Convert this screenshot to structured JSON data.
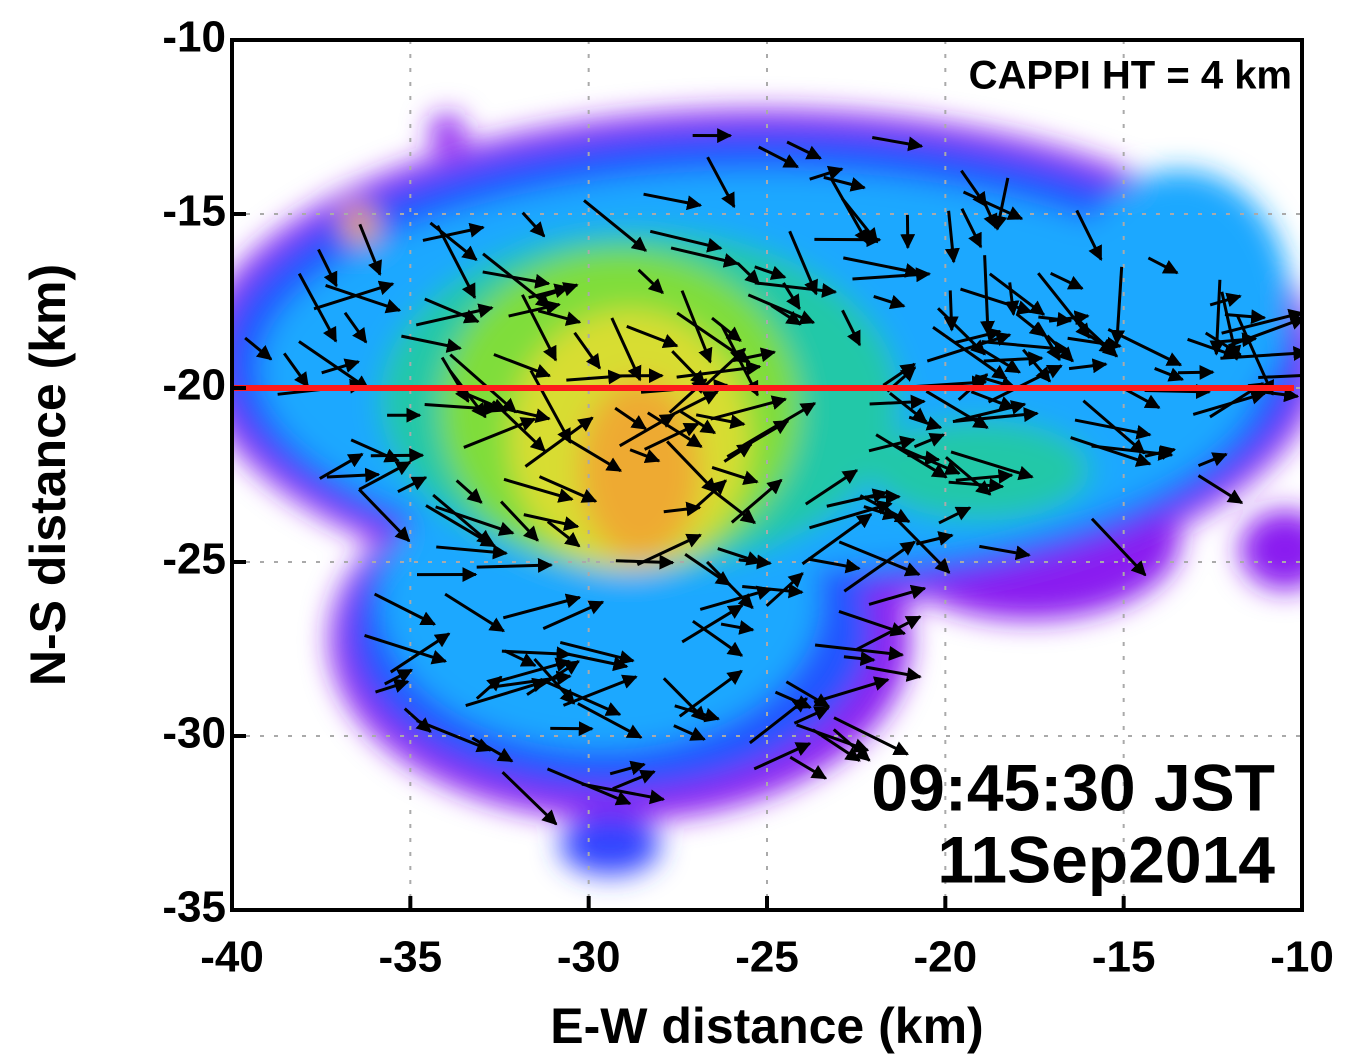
{
  "chart_data": {
    "type": "vector",
    "annotation": "CAPPI  HT = 4 km",
    "time_label": "09:45:30 JST",
    "date_label": "11Sep2014",
    "xlabel": "E-W distance (km)",
    "ylabel": "N-S distance (km)",
    "xlim": [
      -40,
      -10
    ],
    "ylim": [
      -35,
      -10
    ],
    "xticks": [
      -40,
      -35,
      -30,
      -25,
      -20,
      -15,
      -10
    ],
    "yticks": [
      -35,
      -30,
      -25,
      -20,
      -15,
      -10
    ],
    "grid": true,
    "reference_line": {
      "y": -20,
      "color": "#ff1a1a"
    }
  }
}
